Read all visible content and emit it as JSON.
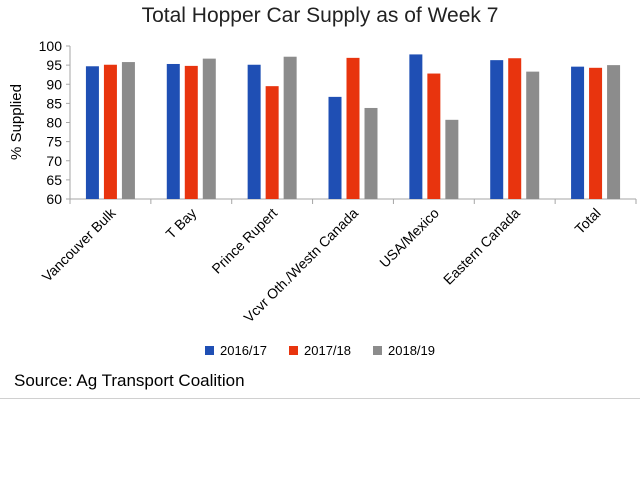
{
  "chart_data": {
    "type": "bar",
    "title": "Total Hopper Car Supply as of Week 7",
    "xlabel": "",
    "ylabel": "% Supplied",
    "ylim": [
      60,
      100
    ],
    "yticks": [
      60,
      65,
      70,
      75,
      80,
      85,
      90,
      95,
      100
    ],
    "grid": false,
    "legend_position": "bottom",
    "categories": [
      "Vancouver Bulk",
      "T Bay",
      "Prince Rupert",
      "Vcvr Oth./Westn Canada",
      "USA/Mexico",
      "Eastern Canada",
      "Total"
    ],
    "series": [
      {
        "name": "2016/17",
        "color": "#1f4fb4",
        "values": [
          94.7,
          95.3,
          95.1,
          86.7,
          97.8,
          96.3,
          94.6
        ]
      },
      {
        "name": "2017/18",
        "color": "#e8340e",
        "values": [
          95.1,
          94.8,
          89.5,
          96.9,
          92.8,
          96.8,
          94.3
        ]
      },
      {
        "name": "2018/19",
        "color": "#8c8c8c",
        "values": [
          95.8,
          96.7,
          97.2,
          83.8,
          80.7,
          93.3,
          95.0
        ]
      }
    ]
  },
  "source": "Source: Ag Transport Coalition"
}
